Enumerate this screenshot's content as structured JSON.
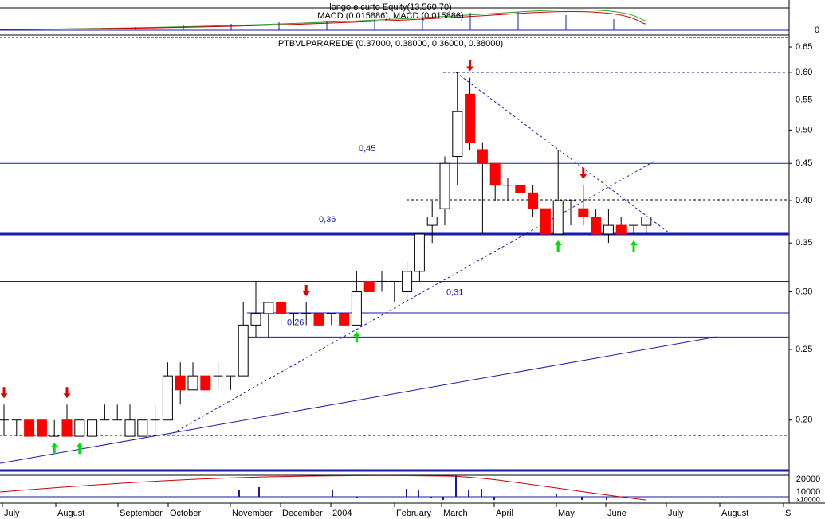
{
  "chart_data": {
    "type": "candlestick",
    "log_scale": true,
    "title": "PTBVLPARAREDE (0.37000, 0.38000, 0.36000, 0.38000)",
    "top_panel": {
      "title_1": "longo e curto Equity(13,560.70)",
      "title_2": "MACD (0.015886), MACD (0.015886)",
      "tick": "0"
    },
    "volume_panel": {
      "ticks": [
        "20000",
        "10000"
      ],
      "unit": "x10000"
    },
    "categories": [
      null,
      null,
      null,
      null,
      null,
      null,
      null,
      null,
      null,
      null,
      null,
      null,
      null,
      null,
      null,
      null,
      null,
      null,
      null,
      null,
      null,
      null,
      null,
      null,
      null,
      null,
      null,
      null,
      null,
      null,
      null,
      null,
      null,
      null,
      null,
      null,
      null,
      null,
      null,
      null,
      null,
      null,
      null,
      null,
      null,
      null,
      null,
      null,
      null,
      null,
      null,
      null
    ],
    "open": [
      0.2,
      0.2,
      0.2,
      0.2,
      0.19,
      0.2,
      0.19,
      0.19,
      0.2,
      0.2,
      0.19,
      0.19,
      0.2,
      0.2,
      0.23,
      0.22,
      0.23,
      0.23,
      0.23,
      0.23,
      0.27,
      0.28,
      0.29,
      0.28,
      0.28,
      0.28,
      0.28,
      0.28,
      0.27,
      0.31,
      0.31,
      0.31,
      0.3,
      0.32,
      0.37,
      0.39,
      0.46,
      0.56,
      0.47,
      0.45,
      0.42,
      0.42,
      0.41,
      0.39,
      0.36,
      0.4,
      0.39,
      0.38,
      0.36,
      0.37,
      0.37,
      0.37
    ],
    "high": [
      0.21,
      0.2,
      0.2,
      0.2,
      0.2,
      0.21,
      0.2,
      0.2,
      0.21,
      0.21,
      0.21,
      0.2,
      0.21,
      0.24,
      0.24,
      0.24,
      0.23,
      0.24,
      0.23,
      0.29,
      0.31,
      0.29,
      0.29,
      0.28,
      0.29,
      0.28,
      0.28,
      0.28,
      0.32,
      0.31,
      0.32,
      0.31,
      0.33,
      0.36,
      0.4,
      0.46,
      0.6,
      0.59,
      0.48,
      0.45,
      0.43,
      0.42,
      0.42,
      0.39,
      0.47,
      0.4,
      0.42,
      0.39,
      0.39,
      0.38,
      0.37,
      0.38
    ],
    "low": [
      0.19,
      0.19,
      0.19,
      0.19,
      0.19,
      0.19,
      0.19,
      0.19,
      0.2,
      0.2,
      0.19,
      0.19,
      0.19,
      0.2,
      0.21,
      0.22,
      0.22,
      0.22,
      0.22,
      0.23,
      0.26,
      0.26,
      0.27,
      0.27,
      0.27,
      0.27,
      0.27,
      0.27,
      0.27,
      0.3,
      0.3,
      0.29,
      0.29,
      0.31,
      0.35,
      0.37,
      0.42,
      0.47,
      0.36,
      0.4,
      0.4,
      0.41,
      0.38,
      0.36,
      0.36,
      0.37,
      0.37,
      0.36,
      0.35,
      0.36,
      0.36,
      0.36
    ],
    "close": [
      0.2,
      0.2,
      0.19,
      0.19,
      0.19,
      0.19,
      0.2,
      0.2,
      0.2,
      0.2,
      0.2,
      0.2,
      0.2,
      0.23,
      0.22,
      0.23,
      0.22,
      0.23,
      0.23,
      0.27,
      0.28,
      0.29,
      0.28,
      0.28,
      0.28,
      0.27,
      0.28,
      0.27,
      0.3,
      0.3,
      0.31,
      0.31,
      0.32,
      0.36,
      0.38,
      0.45,
      0.53,
      0.48,
      0.45,
      0.42,
      0.42,
      0.41,
      0.39,
      0.36,
      0.4,
      0.4,
      0.38,
      0.36,
      0.37,
      0.36,
      0.37,
      0.38
    ],
    "up_color": "#ffffff",
    "down_color": "#ff0000",
    "level_color": "#1a1aa8",
    "levels": [
      {
        "value": 0.45,
        "label": "0,45"
      },
      {
        "value": 0.36,
        "label": "0,36"
      },
      {
        "value": 0.31,
        "label": "0,31"
      },
      {
        "value": 0.26,
        "label": "0,26"
      }
    ],
    "ylim": [
      0.171,
      0.67
    ],
    "yticks": [
      {
        "value": 0.2,
        "label": "0.20"
      },
      0.25,
      {
        "value": 0.3,
        "label": "0.30"
      },
      0.35,
      {
        "value": 0.4,
        "label": "0.40"
      },
      0.45,
      {
        "value": 0.5,
        "label": "0.50"
      },
      0.55,
      {
        "value": 0.6,
        "label": "0.60"
      },
      0.65
    ],
    "x_labels": [
      "July",
      "August",
      "September",
      "October",
      "November",
      "December",
      "2004",
      "February",
      "March",
      "April",
      "May",
      "June",
      "July",
      "August",
      "S"
    ]
  }
}
